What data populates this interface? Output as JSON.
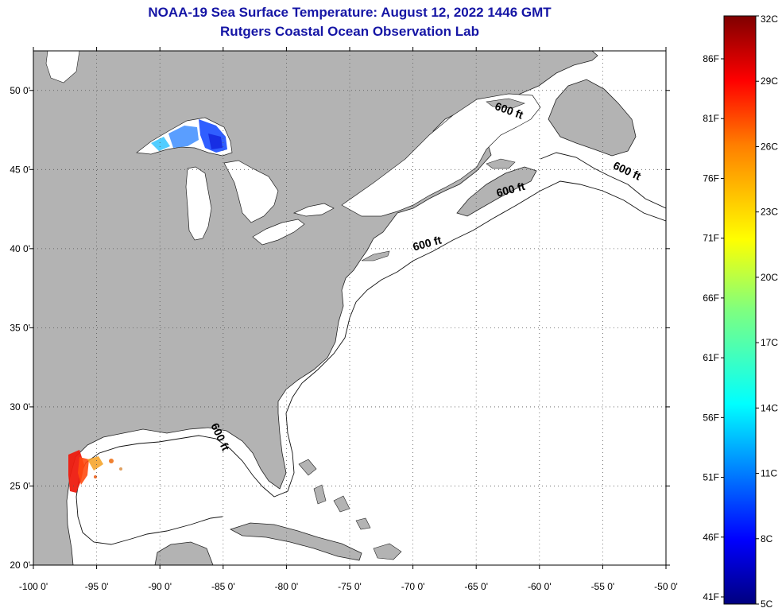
{
  "header": {
    "title": "NOAA-19 Sea Surface Temperature:  August 12, 2022 1446 GMT",
    "subtitle": "Rutgers Coastal Ocean Observation Lab"
  },
  "map": {
    "lon_range": [
      -100,
      -50
    ],
    "lat_range": [
      20,
      52.5
    ],
    "lon_ticks": [
      {
        "value": -100,
        "label": "-100 0'"
      },
      {
        "value": -95,
        "label": "-95 0'"
      },
      {
        "value": -90,
        "label": "-90 0'"
      },
      {
        "value": -85,
        "label": "-85 0'"
      },
      {
        "value": -80,
        "label": "-80 0'"
      },
      {
        "value": -75,
        "label": "-75 0'"
      },
      {
        "value": -70,
        "label": "-70 0'"
      },
      {
        "value": -65,
        "label": "-65 0'"
      },
      {
        "value": -60,
        "label": "-60 0'"
      },
      {
        "value": -55,
        "label": "-55 0'"
      },
      {
        "value": -50,
        "label": "-50 0'"
      }
    ],
    "lat_ticks": [
      {
        "value": 50,
        "label": "50 0'"
      },
      {
        "value": 45,
        "label": "45 0'"
      },
      {
        "value": 40,
        "label": "40 0'"
      },
      {
        "value": 35,
        "label": "35 0'"
      },
      {
        "value": 30,
        "label": "30 0'"
      },
      {
        "value": 25,
        "label": "25 0'"
      },
      {
        "value": 20,
        "label": "20 0'"
      }
    ],
    "contour_labels": [
      {
        "text": "600 ft",
        "lon": -62.5,
        "lat": 48.5,
        "rotate": 20
      },
      {
        "text": "600 ft",
        "lon": -53.2,
        "lat": 44.7,
        "rotate": 25
      },
      {
        "text": "600 ft",
        "lon": -62.2,
        "lat": 43.5,
        "rotate": -15
      },
      {
        "text": "600 ft",
        "lon": -68.8,
        "lat": 40.1,
        "rotate": -15
      },
      {
        "text": "600 ft",
        "lon": -85.5,
        "lat": 28.0,
        "rotate": 65
      }
    ],
    "colors": {
      "land": "#b3b3b3",
      "water": "#ffffff",
      "grid": "#555555",
      "axis": "#000000"
    }
  },
  "colorbar": {
    "celsius_range": [
      5,
      32
    ],
    "celsius_labels": [
      "32C",
      "29C",
      "26C",
      "23C",
      "20C",
      "17C",
      "14C",
      "11C",
      "8C",
      "5C"
    ],
    "fahrenheit_labels": [
      "86F",
      "81F",
      "76F",
      "71F",
      "66F",
      "61F",
      "56F",
      "51F",
      "46F",
      "41F"
    ],
    "colormap": [
      "#00007f",
      "#0000ff",
      "#007fff",
      "#00ffff",
      "#7fff7f",
      "#ffff00",
      "#ff7f00",
      "#ff0000",
      "#7f0000"
    ]
  }
}
